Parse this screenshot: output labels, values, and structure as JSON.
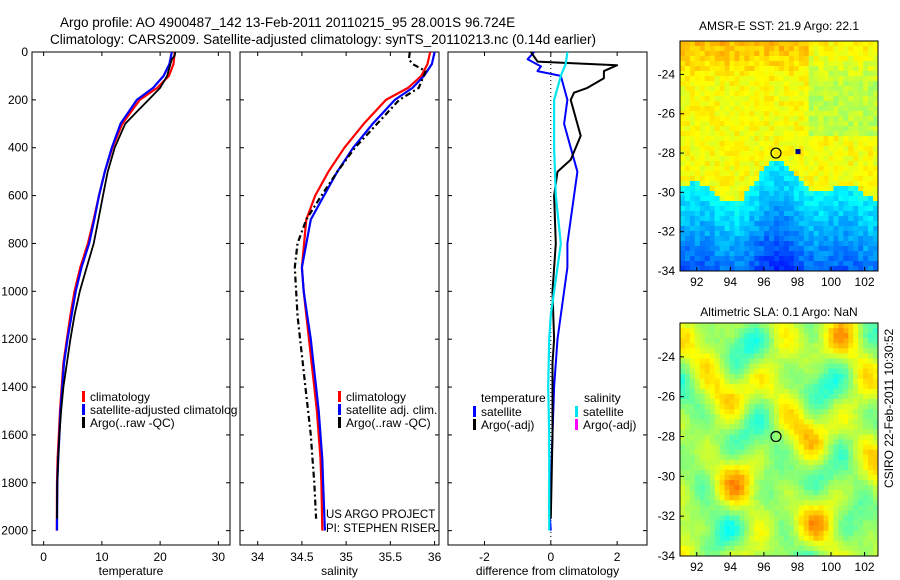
{
  "header": {
    "line1": "Argo profile: AO 4900487_142 13-Feb-2011 20110215_95 28.001S 96.724E",
    "line2": "Climatology: CARS2009. Satellite-adjusted climatology: synTS_20110213.nc (0.14d earlier)"
  },
  "side_label": "CSIRO 22-Feb-2011 10:30:52",
  "project_text": [
    "US ARGO PROJECT",
    "PI: STEPHEN RISER"
  ],
  "colors": {
    "climatology": "#ff0000",
    "satellite": "#0000ff",
    "argo": "#000000",
    "salinity_satellite": "#00e5ee",
    "salinity_argo": "#ff00ff"
  },
  "chart_data": [
    {
      "type": "line",
      "id": "temperature",
      "xlabel": "temperature",
      "ylabel": "",
      "xlim": [
        -2,
        32
      ],
      "ylim": [
        2060,
        0
      ],
      "xticks": [
        0,
        10,
        20,
        30
      ],
      "yticks": [
        0,
        200,
        400,
        600,
        800,
        1000,
        1200,
        1400,
        1600,
        1800,
        2000
      ],
      "legend": [
        "climatology",
        "satellite-adjusted climatolog",
        "Argo(..raw -QC)"
      ],
      "series": [
        {
          "name": "climatology",
          "color": "#ff0000",
          "width": 2.2,
          "dash": "",
          "x": [
            22.5,
            22.3,
            21.5,
            19.5,
            16.5,
            13.5,
            11.8,
            10.5,
            9.5,
            8.6,
            7.6,
            6.3,
            5.3,
            4.6,
            4.0,
            3.4,
            3.1,
            2.8,
            2.6,
            2.4,
            2.3,
            2.25
          ],
          "y": [
            0,
            50,
            100,
            150,
            200,
            300,
            400,
            500,
            600,
            700,
            800,
            900,
            1000,
            1100,
            1200,
            1300,
            1400,
            1500,
            1600,
            1700,
            1800,
            2000
          ]
        },
        {
          "name": "satellite-adjusted climatology",
          "color": "#0000ff",
          "width": 2.2,
          "dash": "",
          "x": [
            22.0,
            21.6,
            20.6,
            18.8,
            16.0,
            13.2,
            11.7,
            10.5,
            9.5,
            8.7,
            7.8,
            6.5,
            5.5,
            4.8,
            4.1,
            3.5,
            3.2,
            2.9,
            2.7,
            2.5,
            2.35,
            2.3
          ],
          "y": [
            0,
            50,
            100,
            150,
            200,
            300,
            400,
            500,
            600,
            700,
            800,
            900,
            1000,
            1100,
            1200,
            1300,
            1400,
            1500,
            1600,
            1700,
            1800,
            2000
          ]
        },
        {
          "name": "Argo(..raw -QC)",
          "color": "#000000",
          "width": 1.8,
          "dash": "",
          "x": [
            22.6,
            22.5,
            22.0,
            21.2,
            20.0,
            18.0,
            16.0,
            14.0,
            12.2,
            11.0,
            10.2,
            9.4,
            8.6,
            7.4,
            6.2,
            5.3,
            4.6,
            4.0,
            3.4,
            3.0,
            2.7,
            2.5,
            2.35,
            2.3
          ],
          "y": [
            0,
            15,
            30,
            100,
            150,
            200,
            250,
            300,
            400,
            500,
            600,
            700,
            800,
            900,
            1000,
            1100,
            1200,
            1300,
            1400,
            1500,
            1600,
            1700,
            1800,
            1950
          ]
        }
      ]
    },
    {
      "type": "line",
      "id": "salinity",
      "xlabel": "salinity",
      "ylabel": "",
      "xlim": [
        33.8,
        36.05
      ],
      "ylim": [
        2060,
        0
      ],
      "xticks": [
        34,
        34.5,
        35,
        35.5,
        36
      ],
      "yticks": [],
      "legend": [
        "climatology",
        "satellite adj. clim.",
        "Argo(..raw -QC)"
      ],
      "series": [
        {
          "name": "climatology",
          "color": "#ff0000",
          "width": 2.2,
          "dash": "",
          "x": [
            35.95,
            35.92,
            35.85,
            35.7,
            35.45,
            35.2,
            34.98,
            34.8,
            34.65,
            34.55,
            34.5,
            34.52,
            34.55,
            34.58,
            34.61,
            34.64,
            34.67,
            34.69,
            34.71,
            34.72,
            34.73
          ],
          "y": [
            0,
            50,
            100,
            150,
            200,
            300,
            400,
            500,
            600,
            700,
            900,
            1000,
            1100,
            1200,
            1300,
            1400,
            1500,
            1600,
            1700,
            1800,
            2000
          ]
        },
        {
          "name": "satellite adj. clim.",
          "color": "#0000ff",
          "width": 2.2,
          "dash": "",
          "x": [
            36.0,
            35.97,
            35.88,
            35.75,
            35.55,
            35.3,
            35.08,
            34.9,
            34.75,
            34.6,
            34.5,
            34.52,
            34.56,
            34.6,
            34.63,
            34.66,
            34.69,
            34.71,
            34.73,
            34.74,
            34.76
          ],
          "y": [
            0,
            50,
            100,
            150,
            200,
            300,
            400,
            500,
            600,
            700,
            900,
            1000,
            1100,
            1200,
            1300,
            1400,
            1500,
            1600,
            1700,
            1800,
            2000
          ]
        },
        {
          "name": "Argo(..raw -QC)",
          "color": "#000000",
          "width": 2.2,
          "dash": "6,3,2,3",
          "x": [
            35.72,
            35.71,
            35.75,
            35.9,
            35.82,
            35.6,
            35.35,
            35.1,
            34.9,
            34.72,
            34.55,
            34.45,
            34.42,
            34.45,
            34.48,
            34.51,
            34.54,
            34.57,
            34.6,
            34.62,
            34.64,
            34.66
          ],
          "y": [
            0,
            30,
            50,
            80,
            150,
            200,
            300,
            400,
            500,
            600,
            700,
            800,
            900,
            1100,
            1200,
            1300,
            1400,
            1500,
            1600,
            1700,
            1800,
            1950
          ]
        }
      ]
    },
    {
      "type": "line",
      "id": "difference",
      "xlabel": "difference from climatology",
      "ylabel": "",
      "xlim": [
        -3.1,
        2.9
      ],
      "ylim": [
        2060,
        0
      ],
      "xticks": [
        -2,
        0,
        2
      ],
      "yticks": [],
      "legend": {
        "temperature_heading": "temperature",
        "salinity_heading": "salinity",
        "temperature": [
          "satellite",
          "Argo(-adj)"
        ],
        "salinity": [
          "satellite",
          "Argo(-adj)"
        ]
      },
      "series": [
        {
          "name": "temperature satellite",
          "color": "#0000ff",
          "width": 2.0,
          "dash": "",
          "x": [
            -0.5,
            -0.7,
            -0.3,
            -0.4,
            0.3,
            0.5,
            0.4,
            0.6,
            0.8,
            0.6,
            0.5,
            0.5,
            0.4,
            0.3,
            0.2,
            0.1,
            0.05,
            0.0,
            -0.05,
            0.0
          ],
          "y": [
            0,
            30,
            60,
            80,
            100,
            200,
            300,
            400,
            500,
            700,
            800,
            900,
            1000,
            1100,
            1200,
            1400,
            1600,
            1800,
            1900,
            2000
          ]
        },
        {
          "name": "temperature Argo(-adj)",
          "color": "#000000",
          "width": 2.0,
          "dash": "",
          "x": [
            -0.6,
            -0.4,
            2.0,
            1.6,
            1.6,
            1.1,
            0.7,
            0.6,
            0.9,
            0.6,
            0.2,
            0.1,
            0.15,
            0.05,
            0.1,
            0.05,
            0.05,
            0.0
          ],
          "y": [
            0,
            40,
            55,
            80,
            110,
            150,
            170,
            200,
            350,
            450,
            500,
            600,
            800,
            1000,
            1200,
            1300,
            1600,
            1950
          ]
        },
        {
          "name": "salinity satellite",
          "color": "#00e5ee",
          "width": 2.2,
          "dash": "",
          "x": [
            0.5,
            0.45,
            0.3,
            0.2,
            0.1,
            0.1,
            0.15,
            0.3,
            0.2,
            0.1,
            0.0,
            -0.05,
            -0.08,
            -0.05,
            -0.05
          ],
          "y": [
            0,
            50,
            100,
            150,
            200,
            400,
            600,
            800,
            900,
            1000,
            1100,
            1200,
            1400,
            1600,
            2000
          ]
        },
        {
          "name": "salinity Argo(-adj)",
          "color": "#ff00ff",
          "width": 1.5,
          "dash": "",
          "x": [],
          "y": []
        }
      ]
    },
    {
      "type": "heatmap",
      "id": "sst-map",
      "title": "AMSR-E SST: 21.9 Argo: 22.1",
      "xlim": [
        91,
        102.8
      ],
      "ylim": [
        -34,
        -22.3
      ],
      "xticks": [
        92,
        94,
        96,
        98,
        100,
        102
      ],
      "yticks": [
        -24,
        -26,
        -28,
        -30,
        -32,
        -34
      ],
      "marker": {
        "lon": 96.72,
        "lat": -28.0
      },
      "palette": "jet"
    },
    {
      "type": "heatmap",
      "id": "sla-map",
      "title": "Altimetric SLA: 0.1 Argo: NaN",
      "xlim": [
        91,
        102.8
      ],
      "ylim": [
        -34,
        -22.3
      ],
      "xticks": [
        92,
        94,
        96,
        98,
        100,
        102
      ],
      "yticks": [
        -24,
        -26,
        -28,
        -30,
        -32,
        -34
      ],
      "marker": {
        "lon": 96.72,
        "lat": -28.0
      },
      "palette": "jet"
    }
  ]
}
